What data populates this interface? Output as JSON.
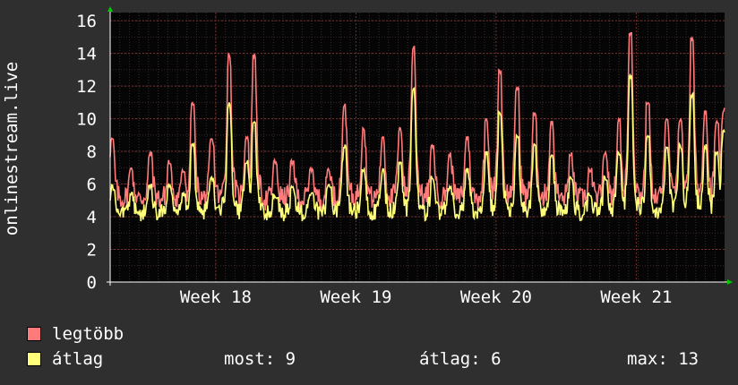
{
  "chart_data": {
    "type": "line",
    "ylabel": "onlinestream.live",
    "ylim": [
      0,
      16.5
    ],
    "yticks": [
      0,
      2,
      4,
      6,
      8,
      10,
      12,
      14,
      16
    ],
    "xlim_days": [
      0,
      32
    ],
    "xtick_labels": [
      {
        "label": "Week 18",
        "day": 5.5
      },
      {
        "label": "Week 19",
        "day": 12.8
      },
      {
        "label": "Week 20",
        "day": 20.1
      },
      {
        "label": "Week 21",
        "day": 27.4
      }
    ],
    "grid": true,
    "legend_placement": "bottom",
    "series": [
      {
        "name": "legtöbb",
        "color": "#ff7a7a",
        "peaks": [
          {
            "day": 0.1,
            "value": 9
          },
          {
            "day": 1.1,
            "value": 7
          },
          {
            "day": 2.1,
            "value": 8
          },
          {
            "day": 3.1,
            "value": 7.5
          },
          {
            "day": 3.8,
            "value": 7
          },
          {
            "day": 4.3,
            "value": 11
          },
          {
            "day": 5.3,
            "value": 9
          },
          {
            "day": 6.2,
            "value": 14
          },
          {
            "day": 7.1,
            "value": 9
          },
          {
            "day": 7.5,
            "value": 14
          },
          {
            "day": 8.6,
            "value": 7.5
          },
          {
            "day": 9.5,
            "value": 7.5
          },
          {
            "day": 10.5,
            "value": 7
          },
          {
            "day": 11.4,
            "value": 7
          },
          {
            "day": 12.2,
            "value": 11
          },
          {
            "day": 13.2,
            "value": 9.5
          },
          {
            "day": 14.2,
            "value": 9
          },
          {
            "day": 15.1,
            "value": 9.5
          },
          {
            "day": 15.8,
            "value": 14.5
          },
          {
            "day": 16.8,
            "value": 8.5
          },
          {
            "day": 17.7,
            "value": 8
          },
          {
            "day": 18.6,
            "value": 9
          },
          {
            "day": 19.6,
            "value": 10
          },
          {
            "day": 20.3,
            "value": 13
          },
          {
            "day": 21.2,
            "value": 12
          },
          {
            "day": 22.1,
            "value": 10.5
          },
          {
            "day": 23.0,
            "value": 10
          },
          {
            "day": 24.0,
            "value": 8
          },
          {
            "day": 25.0,
            "value": 7
          },
          {
            "day": 25.8,
            "value": 8
          },
          {
            "day": 26.5,
            "value": 10
          },
          {
            "day": 27.1,
            "value": 15.3
          },
          {
            "day": 28.0,
            "value": 11
          },
          {
            "day": 29.0,
            "value": 10
          },
          {
            "day": 29.7,
            "value": 10
          },
          {
            "day": 30.3,
            "value": 15
          },
          {
            "day": 31.0,
            "value": 10.5
          },
          {
            "day": 31.6,
            "value": 10
          },
          {
            "day": 31.95,
            "value": 10.7
          }
        ]
      },
      {
        "name": "átlag",
        "color": "#ffff7a",
        "peaks": [
          {
            "day": 0.1,
            "value": 6
          },
          {
            "day": 1.1,
            "value": 5.5
          },
          {
            "day": 2.1,
            "value": 6
          },
          {
            "day": 3.1,
            "value": 6
          },
          {
            "day": 3.8,
            "value": 5.5
          },
          {
            "day": 4.3,
            "value": 8.5
          },
          {
            "day": 5.3,
            "value": 6.5
          },
          {
            "day": 6.2,
            "value": 11
          },
          {
            "day": 7.1,
            "value": 7.5
          },
          {
            "day": 7.5,
            "value": 10
          },
          {
            "day": 8.6,
            "value": 5.5
          },
          {
            "day": 9.5,
            "value": 6
          },
          {
            "day": 10.5,
            "value": 5.5
          },
          {
            "day": 11.4,
            "value": 6
          },
          {
            "day": 12.2,
            "value": 8.5
          },
          {
            "day": 13.2,
            "value": 7
          },
          {
            "day": 14.2,
            "value": 7
          },
          {
            "day": 15.1,
            "value": 7.5
          },
          {
            "day": 15.8,
            "value": 12
          },
          {
            "day": 16.8,
            "value": 6.5
          },
          {
            "day": 17.7,
            "value": 6
          },
          {
            "day": 18.6,
            "value": 7
          },
          {
            "day": 19.6,
            "value": 8
          },
          {
            "day": 20.3,
            "value": 10.5
          },
          {
            "day": 21.2,
            "value": 9
          },
          {
            "day": 22.1,
            "value": 8.5
          },
          {
            "day": 23.0,
            "value": 8
          },
          {
            "day": 24.0,
            "value": 6.5
          },
          {
            "day": 25.0,
            "value": 5.5
          },
          {
            "day": 25.8,
            "value": 6.5
          },
          {
            "day": 26.5,
            "value": 8
          },
          {
            "day": 27.1,
            "value": 12.7
          },
          {
            "day": 28.0,
            "value": 9
          },
          {
            "day": 29.0,
            "value": 8.5
          },
          {
            "day": 29.7,
            "value": 8.5
          },
          {
            "day": 30.3,
            "value": 11.6
          },
          {
            "day": 31.0,
            "value": 8.5
          },
          {
            "day": 31.6,
            "value": 8
          },
          {
            "day": 31.95,
            "value": 9.4
          }
        ]
      }
    ]
  },
  "legend": {
    "max_series": {
      "label": "legtöbb",
      "color": "#ff7a7a"
    },
    "avg_series": {
      "label": "átlag",
      "color": "#ffff7a"
    },
    "stats": {
      "now_label": "most:",
      "now_value": "9",
      "avg_label": "átlag:",
      "avg_value": "6",
      "max_label": "max:",
      "max_value": "13"
    }
  }
}
